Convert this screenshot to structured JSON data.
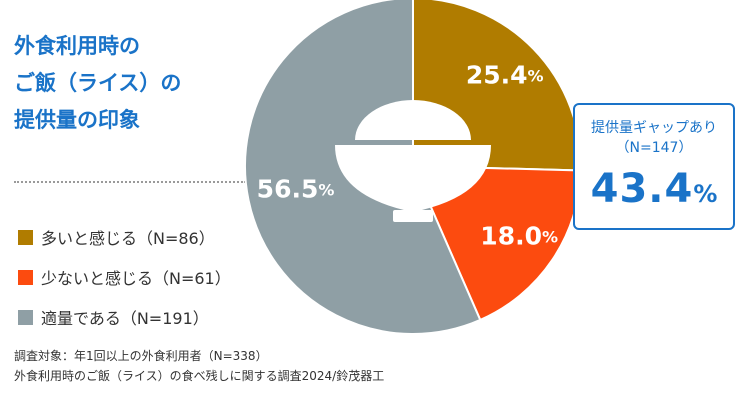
{
  "title_lines": [
    "外食利用時の",
    "ご飯（ライス）の",
    "提供量の印象"
  ],
  "legend": [
    {
      "label": "多いと感じる（N=86）",
      "color": "#b07c00"
    },
    {
      "label": "少ないと感じる（N=61）",
      "color": "#fc4b0f"
    },
    {
      "label": "適量である（N=191）",
      "color": "#8f9fa5"
    }
  ],
  "footnote": {
    "line1": "調査対象：年1回以上の外食利用者（N=338）",
    "line2": "外食利用時のご飯（ライス）の食べ残しに関する調査2024/鈴茂器工"
  },
  "callout": {
    "title": "提供量ギャップあり",
    "n": "（N=147）",
    "value": "43.4",
    "unit": "%"
  },
  "chart_data": {
    "type": "pie",
    "style": "donut with rice-bowl icon in center",
    "slices": [
      {
        "name": "多いと感じる（N=86）",
        "value": 25.4,
        "label": "25.4",
        "color": "#b07c00"
      },
      {
        "name": "少ないと感じる（N=61）",
        "value": 18.0,
        "label": "18.0",
        "color": "#fc4b0f"
      },
      {
        "name": "適量である（N=191）",
        "value": 56.5,
        "label": "56.5",
        "color": "#8f9fa5"
      }
    ],
    "unit": "%",
    "start": "12 o'clock, clockwise"
  }
}
